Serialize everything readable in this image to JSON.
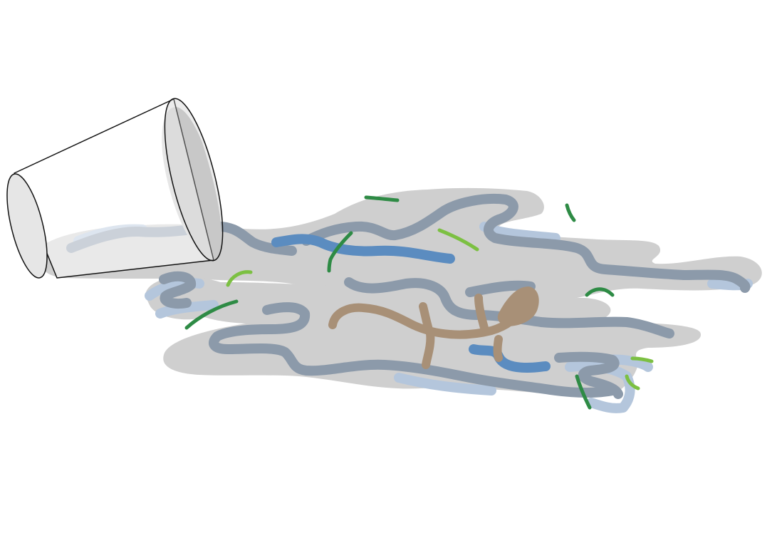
{
  "scene": {
    "subject": "spilled-cup-with-water-and-debris",
    "colors": {
      "background": "#ffffff",
      "puddle": "#cfcfcf",
      "cup_shadow": "#c8c8c8",
      "cup_outline": "#111111",
      "cup_opening": "#e6e6e6",
      "water_light_blue": "#b4c6dc",
      "water_gray_blue": "#8c9aaa",
      "water_blue": "#5b8cc0",
      "twig_brown": "#a89077",
      "grass_dark_green": "#2e8b45",
      "grass_light_green": "#7cc042"
    }
  }
}
